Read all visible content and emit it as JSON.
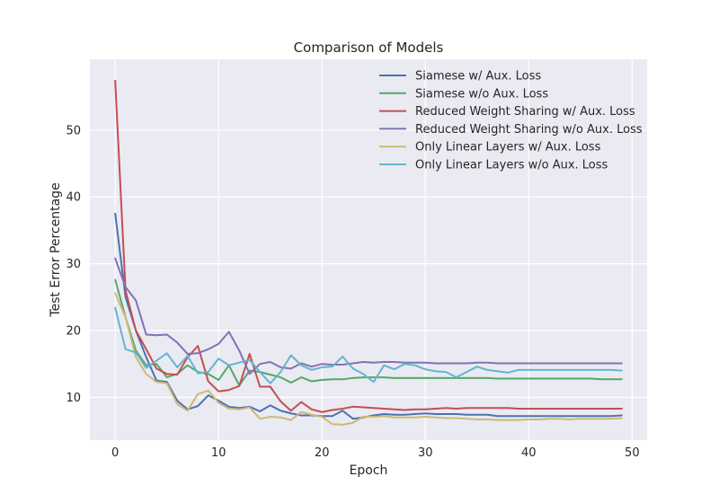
{
  "chart_data": {
    "type": "line",
    "title": "Comparison of Models",
    "xlabel": "Epoch",
    "ylabel": "Test Error Percentage",
    "xlim": [
      -2.45,
      51.45
    ],
    "ylim": [
      3.6,
      60.6
    ],
    "xticks": [
      0,
      10,
      20,
      30,
      40,
      50
    ],
    "yticks": [
      10,
      20,
      30,
      40,
      50
    ],
    "grid": true,
    "background": "#EAEAF2",
    "legend_position": "top-right",
    "x": [
      0,
      1,
      2,
      3,
      4,
      5,
      6,
      7,
      8,
      9,
      10,
      11,
      12,
      13,
      14,
      15,
      16,
      17,
      18,
      19,
      20,
      21,
      22,
      23,
      24,
      25,
      26,
      27,
      28,
      29,
      30,
      31,
      32,
      33,
      34,
      35,
      36,
      37,
      38,
      39,
      40,
      41,
      42,
      43,
      44,
      45,
      46,
      47,
      48,
      49
    ],
    "series": [
      {
        "name": "Siamese w/ Aux. Loss",
        "color": "#4C72B0",
        "values": [
          37.5,
          25,
          20,
          16,
          12.5,
          12.3,
          9.5,
          8.2,
          8.7,
          10.3,
          9.5,
          8.6,
          8.4,
          8.6,
          7.9,
          8.8,
          8,
          7.6,
          7.3,
          7.3,
          7.2,
          7.2,
          8,
          6.8,
          7,
          7.3,
          7.5,
          7.4,
          7.4,
          7.5,
          7.6,
          7.5,
          7.5,
          7.5,
          7.4,
          7.4,
          7.4,
          7.2,
          7.2,
          7.2,
          7.2,
          7.2,
          7.2,
          7.2,
          7.2,
          7.2,
          7.2,
          7.2,
          7.2,
          7.3
        ]
      },
      {
        "name": "Siamese w/o Aux. Loss",
        "color": "#55A868",
        "values": [
          27.6,
          22,
          17,
          14.8,
          15,
          13,
          13.5,
          14.8,
          13.8,
          13.5,
          12.6,
          14.8,
          11.8,
          14,
          13.8,
          13.4,
          13,
          12.2,
          13,
          12.4,
          12.6,
          12.7,
          12.7,
          12.9,
          13,
          13,
          13,
          12.9,
          12.9,
          12.9,
          12.9,
          12.9,
          12.9,
          12.9,
          12.9,
          12.9,
          12.9,
          12.8,
          12.8,
          12.8,
          12.8,
          12.8,
          12.8,
          12.8,
          12.8,
          12.8,
          12.8,
          12.7,
          12.7,
          12.7
        ]
      },
      {
        "name": "Reduced Weight Sharing w/ Aux. Loss",
        "color": "#C44E52",
        "values": [
          57.4,
          26,
          20,
          17.2,
          14.3,
          13.5,
          13.4,
          16,
          17.7,
          12.4,
          10.9,
          11.1,
          11.7,
          16.5,
          11.6,
          11.6,
          9.4,
          8,
          9.3,
          8.2,
          7.8,
          8.1,
          8.3,
          8.6,
          8.5,
          8.4,
          8.3,
          8.2,
          8.1,
          8.2,
          8.2,
          8.3,
          8.4,
          8.3,
          8.4,
          8.4,
          8.4,
          8.4,
          8.4,
          8.3,
          8.3,
          8.3,
          8.3,
          8.3,
          8.3,
          8.3,
          8.3,
          8.3,
          8.3,
          8.3
        ]
      },
      {
        "name": "Reduced Weight Sharing w/o Aux. Loss",
        "color": "#8172B2",
        "values": [
          30.8,
          26.5,
          24.5,
          19.4,
          19.3,
          19.4,
          18.2,
          16.5,
          16.6,
          17.2,
          18,
          19.8,
          17,
          13.5,
          15,
          15.3,
          14.5,
          14.3,
          15.1,
          14.6,
          15,
          14.9,
          14.9,
          15.1,
          15.3,
          15.2,
          15.3,
          15.3,
          15.2,
          15.2,
          15.2,
          15.1,
          15.1,
          15.1,
          15.1,
          15.2,
          15.2,
          15.1,
          15.1,
          15.1,
          15.1,
          15.1,
          15.1,
          15.1,
          15.1,
          15.1,
          15.1,
          15.1,
          15.1,
          15.1
        ]
      },
      {
        "name": "Only Linear Layers w/ Aux. Loss",
        "color": "#CCB974",
        "values": [
          25.6,
          22,
          16,
          13.5,
          12.3,
          12.1,
          9,
          8,
          10.5,
          11,
          9.2,
          8.3,
          8.2,
          8.5,
          6.8,
          7.1,
          7,
          6.6,
          7.8,
          7.4,
          7.1,
          6,
          5.9,
          6.2,
          7.1,
          7.1,
          7.2,
          7,
          7,
          7,
          7.1,
          7,
          6.9,
          6.9,
          6.8,
          6.7,
          6.7,
          6.6,
          6.6,
          6.6,
          6.7,
          6.7,
          6.8,
          6.8,
          6.7,
          6.8,
          6.8,
          6.8,
          6.8,
          6.9
        ]
      },
      {
        "name": "Only Linear Layers w/o Aux. Loss",
        "color": "#64B5CD",
        "values": [
          23.4,
          17.2,
          16.7,
          14.4,
          15.5,
          16.6,
          14.5,
          16.2,
          13.6,
          13.8,
          15.8,
          14.8,
          15.2,
          15.6,
          13.8,
          12.1,
          13.8,
          16.3,
          14.8,
          14.1,
          14.5,
          14.6,
          16.1,
          14.3,
          13.5,
          12.3,
          14.8,
          14.2,
          15,
          14.8,
          14.2,
          13.9,
          13.8,
          13,
          13.8,
          14.6,
          14.1,
          13.9,
          13.7,
          14.1,
          14.1,
          14.1,
          14.1,
          14.1,
          14.1,
          14.1,
          14.1,
          14.1,
          14.1,
          14
        ]
      }
    ]
  }
}
